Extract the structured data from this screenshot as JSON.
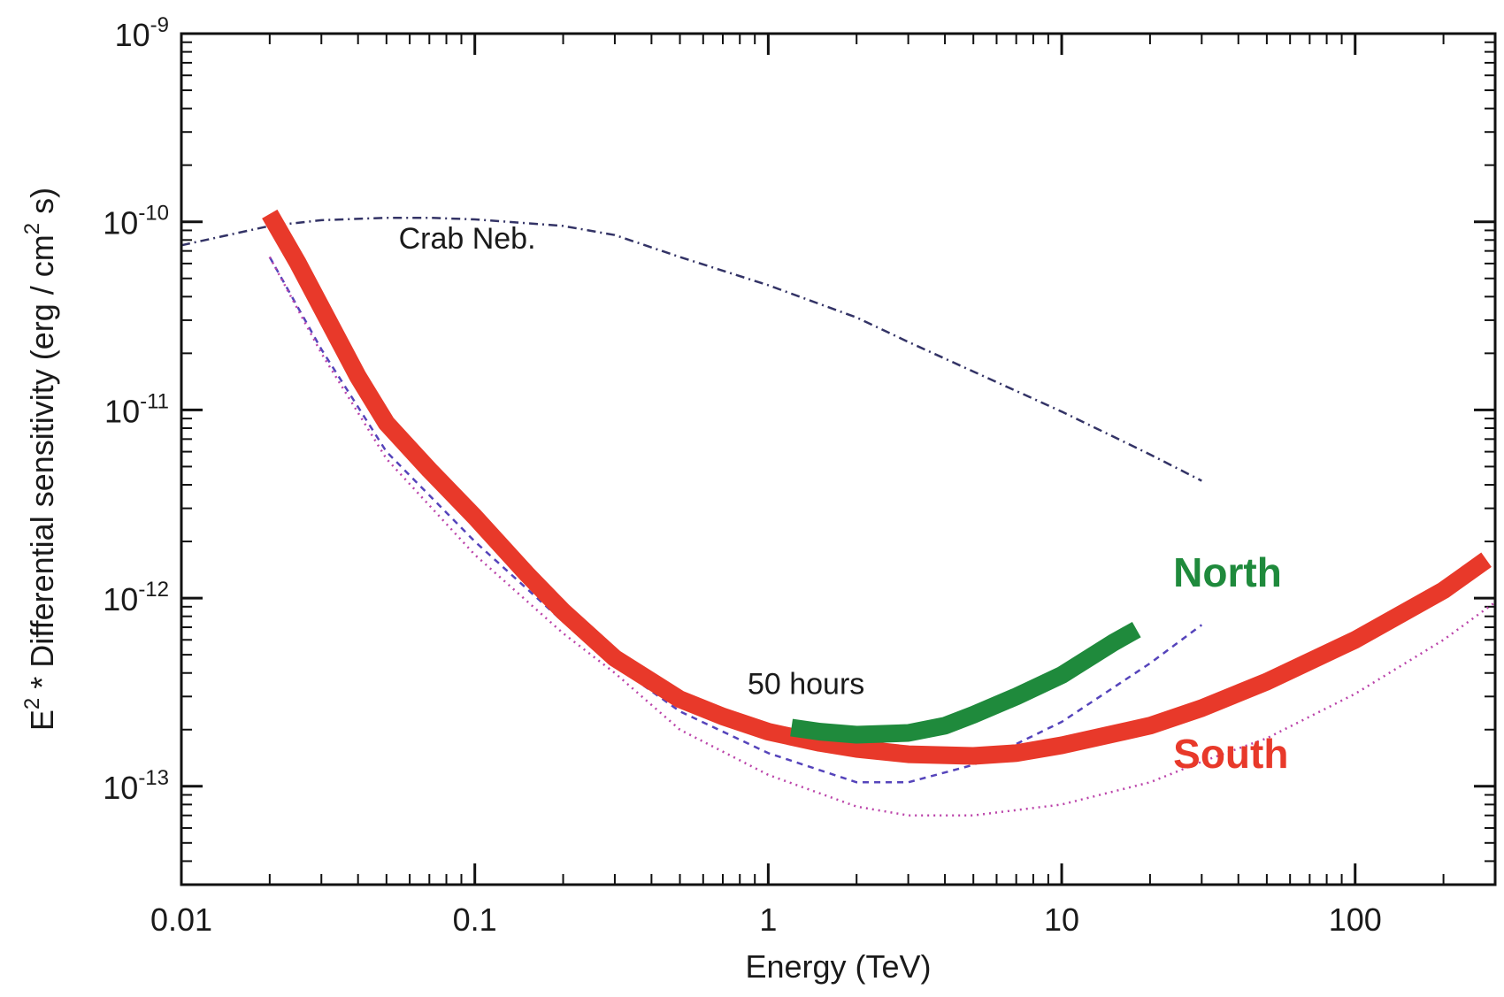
{
  "chart_data": {
    "type": "line",
    "title": "",
    "xlabel": "Energy (TeV)",
    "ylabel": {
      "prefix": "E",
      "prefix_sup": "2",
      "middle": " * Differential sensitivity (erg / cm",
      "middle_sup": "2",
      "suffix": " s)"
    },
    "x_scale": "log",
    "y_scale": "log",
    "xlim": [
      0.01,
      300
    ],
    "ylim": [
      3e-14,
      1e-09
    ],
    "x_ticks": [
      {
        "value": 0.01,
        "label": "0.01"
      },
      {
        "value": 0.1,
        "label": "0.1"
      },
      {
        "value": 1,
        "label": "1"
      },
      {
        "value": 10,
        "label": "10"
      },
      {
        "value": 100,
        "label": "100"
      }
    ],
    "y_ticks": [
      {
        "value": 1e-13,
        "base": "10",
        "exp": "-13"
      },
      {
        "value": 1e-12,
        "base": "10",
        "exp": "-12"
      },
      {
        "value": 1e-11,
        "base": "10",
        "exp": "-11"
      },
      {
        "value": 1e-10,
        "base": "10",
        "exp": "-10"
      },
      {
        "value": 1e-09,
        "base": "10",
        "exp": "-9"
      }
    ],
    "grid": false,
    "series": [
      {
        "key": "crab",
        "style": "dashdot",
        "color": "#333366",
        "x": [
          0.01,
          0.02,
          0.03,
          0.05,
          0.07,
          0.1,
          0.2,
          0.3,
          0.5,
          1,
          2,
          3,
          5,
          10,
          20,
          30
        ],
        "y": [
          7.5e-11,
          9.5e-11,
          1.02e-10,
          1.05e-10,
          1.05e-10,
          1.03e-10,
          9.5e-11,
          8.5e-11,
          6.5e-11,
          4.6e-11,
          3.1e-11,
          2.3e-11,
          1.6e-11,
          9.8e-12,
          5.8e-12,
          4.2e-12
        ]
      },
      {
        "key": "south_dashed",
        "style": "dashed",
        "color": "#5544bb",
        "x": [
          0.02,
          0.03,
          0.05,
          0.1,
          0.2,
          0.3,
          0.5,
          1,
          2,
          3,
          5,
          10,
          20,
          30
        ],
        "y": [
          6.5e-11,
          2.1e-11,
          6e-12,
          2e-12,
          7.5e-13,
          4.4e-13,
          2.5e-13,
          1.5e-13,
          1.05e-13,
          1.05e-13,
          1.3e-13,
          2.2e-13,
          4.5e-13,
          7.2e-13
        ]
      },
      {
        "key": "south_dotted",
        "style": "dotted",
        "color": "#bb44aa",
        "x": [
          0.02,
          0.03,
          0.05,
          0.1,
          0.2,
          0.3,
          0.5,
          1,
          2,
          3,
          5,
          10,
          20,
          30,
          50,
          100,
          200,
          300
        ],
        "y": [
          6.5e-11,
          2e-11,
          5.5e-12,
          1.7e-12,
          6.5e-13,
          4e-13,
          2e-13,
          1.15e-13,
          7.8e-14,
          7e-14,
          7e-14,
          8e-14,
          1.05e-13,
          1.35e-13,
          1.8e-13,
          3.1e-13,
          6e-13,
          9.5e-13
        ]
      },
      {
        "key": "south",
        "name": "South",
        "style": "solid",
        "color": "#e8392a",
        "width": 20,
        "x": [
          0.02,
          0.025,
          0.03,
          0.04,
          0.05,
          0.07,
          0.1,
          0.15,
          0.2,
          0.3,
          0.5,
          0.7,
          1,
          1.5,
          2,
          3,
          5,
          7,
          10,
          20,
          30,
          50,
          100,
          200,
          280
        ],
        "y": [
          1.1e-10,
          6e-11,
          3.5e-11,
          1.5e-11,
          8.5e-12,
          4.8e-12,
          2.7e-12,
          1.35e-12,
          8.5e-13,
          4.8e-13,
          2.9e-13,
          2.35e-13,
          1.95e-13,
          1.7e-13,
          1.58e-13,
          1.48e-13,
          1.45e-13,
          1.5e-13,
          1.65e-13,
          2.1e-13,
          2.6e-13,
          3.6e-13,
          6e-13,
          1.1e-12,
          1.6e-12
        ]
      },
      {
        "key": "north",
        "name": "North",
        "style": "solid",
        "color": "#1f8a3c",
        "width": 20,
        "x": [
          1.2,
          1.5,
          2,
          3,
          4,
          5,
          7,
          10,
          15,
          18
        ],
        "y": [
          2.05e-13,
          1.95e-13,
          1.88e-13,
          1.92e-13,
          2.1e-13,
          2.4e-13,
          3e-13,
          3.9e-13,
          5.8e-13,
          6.8e-13
        ]
      }
    ],
    "annotations": [
      {
        "text": "Crab Neb.",
        "x": 0.055,
        "y": 7.2e-11
      },
      {
        "text": "50 hours",
        "x": 0.85,
        "y": 3.1e-13
      }
    ],
    "series_labels": [
      {
        "key": "north",
        "text": "North",
        "x": 24,
        "y": 1.15e-12,
        "color": "#1f8a3c"
      },
      {
        "key": "south",
        "text": "South",
        "x": 24,
        "y": 1.25e-13,
        "color": "#e8392a"
      }
    ]
  }
}
